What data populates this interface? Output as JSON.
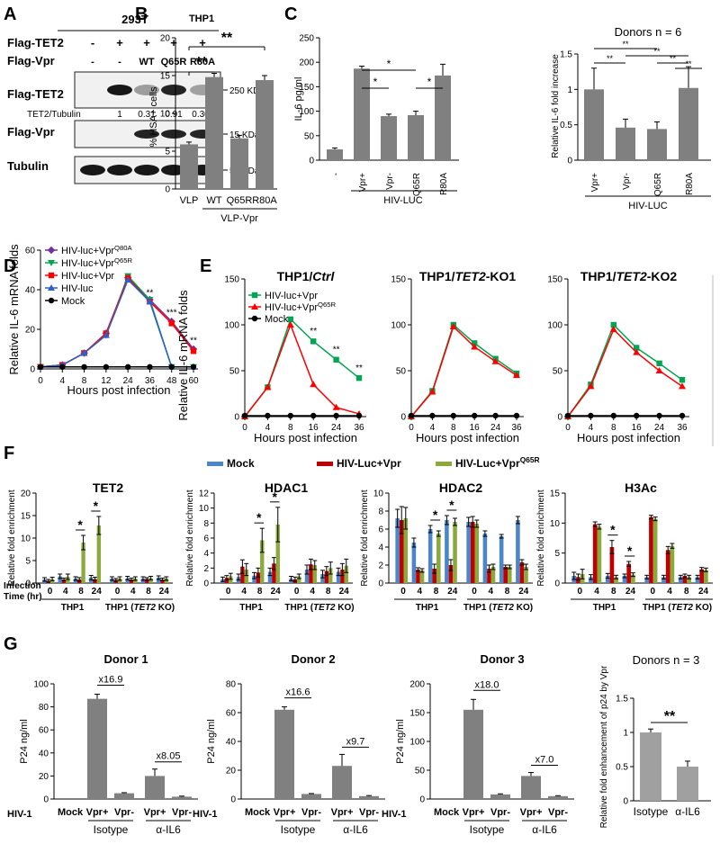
{
  "panel_labels": [
    "A",
    "B",
    "C",
    "D",
    "E",
    "F",
    "G"
  ],
  "A": {
    "cell_line": "293T",
    "row_flag_tet2": "Flag-TET2",
    "row_flag_vpr": "Flag-Vpr",
    "tet2_marks": [
      "-",
      "+",
      "+",
      "+",
      "+"
    ],
    "vpr_marks": [
      "-",
      "-",
      "WT",
      "Q65R",
      "R80A"
    ],
    "blot_labels": [
      "Flag-TET2",
      "Flag-Vpr",
      "Tubulin"
    ],
    "sizes": [
      "250 KDa",
      "15 KDa",
      "55 KDa"
    ],
    "ratio_label": "TET2/Tubulin",
    "ratios": [
      "1",
      "0.31",
      "0.91",
      "0.30"
    ]
  },
  "B": {
    "title": "THP1",
    "ylabel": "% HSA+ cells",
    "group_label": "VLP-Vpr",
    "sig": [
      "**",
      "**"
    ],
    "chart_data": {
      "type": "bar",
      "categories": [
        "VLP",
        "WT",
        "Q65R",
        "R80A"
      ],
      "values": [
        5.9,
        14.8,
        6.7,
        14.4
      ],
      "errors": [
        0.3,
        0.5,
        0.4,
        0.6
      ],
      "ylim": [
        0,
        20
      ],
      "yticks": [
        0,
        5,
        10,
        15,
        20
      ]
    }
  },
  "C": {
    "left": {
      "ylabel": "IL-6 pg/ml",
      "group_label": "HIV-LUC",
      "sig": [
        "*",
        "*",
        "*"
      ],
      "chart_data": {
        "type": "bar",
        "categories": [
          "-",
          "Vpr+",
          "Vpr-",
          "Q65R",
          "R80A"
        ],
        "values": [
          22,
          187,
          90,
          92,
          173
        ],
        "errors": [
          3,
          5,
          4,
          8,
          23
        ],
        "ylim": [
          0,
          250
        ],
        "yticks": [
          0,
          50,
          100,
          150,
          200,
          250
        ]
      }
    },
    "right": {
      "title": "Donors n = 6",
      "ylabel": "Relative IL-6 fold increase",
      "group_label": "HIV-LUC",
      "sig": [
        "**",
        "**",
        "**",
        "**",
        "**"
      ],
      "chart_data": {
        "type": "bar",
        "categories": [
          "Vpr+",
          "Vpr-",
          "Q65R",
          "R80A"
        ],
        "values": [
          1.0,
          0.46,
          0.44,
          1.02
        ],
        "errors": [
          0.3,
          0.12,
          0.1,
          0.3
        ],
        "ylim": [
          0,
          1.5
        ],
        "yticks": [
          0,
          0.5,
          1.0,
          1.5
        ]
      }
    }
  },
  "D": {
    "ylabel": "Relative IL-6 mRNA folds",
    "xlabel": "Hours post infection",
    "chart_data": {
      "type": "line",
      "x": [
        0,
        4,
        8,
        12,
        24,
        36,
        48,
        60
      ],
      "ylim": [
        0,
        60
      ],
      "yticks": [
        0,
        20,
        40,
        60
      ],
      "series": [
        {
          "name": "HIV-luc+VprQ80A",
          "name_main": "HIV-luc+Vpr",
          "name_sup": "Q80A",
          "color": "#7030a0",
          "marker": "diamond",
          "values": [
            1,
            2,
            8,
            18,
            46,
            35,
            24,
            10
          ]
        },
        {
          "name": "HIV-luc+VprQ65R",
          "name_main": "HIV-luc+Vpr",
          "name_sup": "Q65R",
          "color": "#00a651",
          "marker": "triangle-down",
          "values": [
            1,
            2,
            8,
            17,
            47,
            35,
            1,
            1
          ]
        },
        {
          "name": "HIV-luc+Vpr",
          "color": "#ff0000",
          "marker": "square",
          "values": [
            1,
            2,
            8,
            18,
            46,
            34,
            23,
            9
          ]
        },
        {
          "name": "HIV-luc",
          "color": "#2e5fcc",
          "marker": "triangle-up",
          "values": [
            1,
            2,
            8,
            17,
            45,
            34,
            1,
            1
          ]
        },
        {
          "name": "Mock",
          "color": "#000000",
          "marker": "circle",
          "values": [
            1,
            1,
            1,
            1,
            1,
            1,
            1,
            1
          ]
        }
      ],
      "sig": [
        {
          "x": 36,
          "y": 37,
          "label": "**"
        },
        {
          "x": 48,
          "y": 27,
          "label": "***"
        },
        {
          "x": 60,
          "y": 13,
          "label": "**"
        }
      ]
    }
  },
  "E": {
    "ylabel": "Relative IL-6 mRNA folds",
    "xlabel": "Hours post infection",
    "legend": [
      {
        "name": "HIV-luc+Vpr",
        "color": "#00a651",
        "marker": "square"
      },
      {
        "name_main": "HIV-luc+Vpr",
        "name_sup": "Q65R",
        "color": "#ff0000",
        "marker": "triangle-up"
      },
      {
        "name": "Mock",
        "color": "#000000",
        "marker": "circle"
      }
    ],
    "panels": [
      {
        "title_main": "THP1/",
        "title_ital": "Ctrl",
        "title_rest": "",
        "x": [
          0,
          4,
          8,
          16,
          24,
          36
        ],
        "ylim": [
          0,
          150
        ],
        "yticks": [
          0,
          50,
          100,
          150
        ],
        "series": [
          {
            "color": "#00a651",
            "marker": "square",
            "values": [
              0,
              32,
              106,
              82,
              62,
              42
            ]
          },
          {
            "color": "#ff0000",
            "marker": "triangle-up",
            "values": [
              0,
              32,
              100,
              35,
              10,
              3
            ]
          },
          {
            "color": "#000000",
            "marker": "circle",
            "values": [
              1,
              1,
              1,
              1,
              1,
              1
            ]
          }
        ],
        "sig": [
          {
            "x": 16,
            "y": 90,
            "label": "**"
          },
          {
            "x": 24,
            "y": 70,
            "label": "**"
          },
          {
            "x": 36,
            "y": 50,
            "label": "**"
          }
        ]
      },
      {
        "title_main": "THP1/",
        "title_ital": "TET2",
        "title_rest": "-KO1",
        "x": [
          0,
          4,
          8,
          16,
          24,
          36
        ],
        "ylim": [
          0,
          150
        ],
        "yticks": [
          0,
          50,
          100,
          150
        ],
        "series": [
          {
            "color": "#00a651",
            "marker": "square",
            "values": [
              0,
              28,
              100,
              80,
              63,
              47
            ]
          },
          {
            "color": "#ff0000",
            "marker": "triangle-up",
            "values": [
              0,
              27,
              98,
              76,
              60,
              45
            ]
          },
          {
            "color": "#000000",
            "marker": "circle",
            "values": [
              1,
              1,
              1,
              1,
              1,
              1
            ]
          }
        ],
        "sig": []
      },
      {
        "title_main": "THP1/",
        "title_ital": "TET2",
        "title_rest": "-KO2",
        "x": [
          0,
          4,
          8,
          16,
          24,
          36
        ],
        "ylim": [
          0,
          150
        ],
        "yticks": [
          0,
          50,
          100,
          150
        ],
        "series": [
          {
            "color": "#00a651",
            "marker": "square",
            "values": [
              0,
              35,
              100,
              75,
              58,
              40
            ]
          },
          {
            "color": "#ff0000",
            "marker": "triangle-up",
            "values": [
              0,
              33,
              95,
              70,
              50,
              33
            ]
          },
          {
            "color": "#000000",
            "marker": "circle",
            "values": [
              1,
              1,
              1,
              1,
              1,
              1
            ]
          }
        ],
        "sig": []
      }
    ]
  },
  "F": {
    "legend": [
      {
        "name": "Mock",
        "color": "#4a86c8"
      },
      {
        "name": "HIV-Luc+Vpr",
        "color": "#c00000"
      },
      {
        "name_main": "HIV-Luc+Vpr",
        "name_sup": "Q65R",
        "color": "#8aab3c"
      }
    ],
    "ylabel": "Relative fold enrichment",
    "infection_label_1": "Infection",
    "infection_label_2": "Time (hr)",
    "times": [
      "0",
      "4",
      "8",
      "24",
      "0",
      "4",
      "8",
      "24"
    ],
    "groups": [
      {
        "main": "THP1",
        "ital": "",
        "rest": ""
      },
      {
        "main": "THP1 (",
        "ital": "TET2",
        "rest": " KO)"
      }
    ],
    "panels": [
      {
        "title": "TET2",
        "ylim": [
          0,
          20
        ],
        "yticks": [
          0,
          5,
          10,
          15,
          20
        ],
        "sig_groups": [
          2,
          3
        ],
        "values": [
          [
            0.8,
            0.5,
            0.9
          ],
          [
            1.5,
            0.8,
            1.4
          ],
          [
            1.0,
            0.8,
            9.0
          ],
          [
            1.2,
            0.9,
            12.8
          ],
          [
            1.0,
            0.7,
            1.0
          ],
          [
            1.1,
            0.8,
            1.0
          ],
          [
            1.0,
            0.9,
            1.1
          ],
          [
            1.2,
            0.8,
            1.0
          ]
        ],
        "errors": [
          [
            0.4,
            0.3,
            0.4
          ],
          [
            0.5,
            0.3,
            0.6
          ],
          [
            0.4,
            0.4,
            1.6
          ],
          [
            0.5,
            0.4,
            2.0
          ],
          [
            0.4,
            0.3,
            0.4
          ],
          [
            0.4,
            0.3,
            0.4
          ],
          [
            0.4,
            0.3,
            0.4
          ],
          [
            0.4,
            0.3,
            0.4
          ]
        ]
      },
      {
        "title": "HDAC1",
        "ylim": [
          0,
          12
        ],
        "yticks": [
          0,
          2,
          4,
          6,
          8,
          10,
          12
        ],
        "sig_groups": [
          2,
          3
        ],
        "values": [
          [
            0.5,
            0.7,
            0.9
          ],
          [
            0.8,
            2.2,
            1.8
          ],
          [
            1.0,
            1.4,
            5.7
          ],
          [
            1.5,
            2.6,
            7.8
          ],
          [
            0.6,
            0.5,
            0.9
          ],
          [
            1.8,
            2.5,
            2.4
          ],
          [
            1.2,
            1.6,
            2.0
          ],
          [
            1.5,
            1.8,
            2.3
          ]
        ],
        "errors": [
          [
            0.3,
            0.3,
            0.4
          ],
          [
            0.4,
            0.9,
            0.8
          ],
          [
            0.4,
            0.6,
            1.6
          ],
          [
            0.5,
            0.8,
            2.3
          ],
          [
            0.3,
            0.3,
            0.3
          ],
          [
            0.6,
            0.7,
            0.6
          ],
          [
            0.5,
            0.6,
            0.8
          ],
          [
            0.5,
            0.8,
            0.9
          ]
        ]
      },
      {
        "title": "HDAC2",
        "ylim": [
          0,
          10
        ],
        "yticks": [
          0,
          2,
          4,
          6,
          8,
          10
        ],
        "sig_groups": [
          2,
          3
        ],
        "values": [
          [
            7.2,
            7.0,
            7.2
          ],
          [
            4.5,
            1.5,
            1.4
          ],
          [
            6.0,
            1.6,
            5.5
          ],
          [
            7.0,
            2.0,
            6.8
          ],
          [
            6.8,
            6.8,
            6.6
          ],
          [
            5.5,
            1.6,
            1.8
          ],
          [
            5.2,
            1.8,
            1.8
          ],
          [
            7.0,
            2.3,
            1.8
          ]
        ],
        "errors": [
          [
            1.0,
            1.5,
            1.2
          ],
          [
            0.5,
            0.2,
            0.2
          ],
          [
            0.4,
            0.5,
            0.3
          ],
          [
            0.5,
            0.6,
            0.4
          ],
          [
            0.5,
            0.6,
            0.4
          ],
          [
            0.3,
            0.4,
            0.3
          ],
          [
            0.2,
            0.2,
            0.2
          ],
          [
            0.4,
            0.3,
            0.3
          ]
        ]
      },
      {
        "title": "H3Ac",
        "ylim": [
          0,
          15
        ],
        "yticks": [
          0,
          5,
          10,
          15
        ],
        "sig_groups": [
          2,
          3
        ],
        "values": [
          [
            1.2,
            1.0,
            1.5
          ],
          [
            1.0,
            9.8,
            9.4
          ],
          [
            1.2,
            6.0,
            1.0
          ],
          [
            1.2,
            3.2,
            1.4
          ],
          [
            1.0,
            11.0,
            10.7
          ],
          [
            1.0,
            5.5,
            6.2
          ],
          [
            1.0,
            1.2,
            1.0
          ],
          [
            1.0,
            2.3,
            2.2
          ]
        ],
        "errors": [
          [
            0.6,
            0.5,
            0.8
          ],
          [
            0.4,
            0.4,
            0.4
          ],
          [
            0.4,
            1.1,
            0.3
          ],
          [
            0.3,
            0.4,
            0.3
          ],
          [
            0.3,
            0.3,
            0.3
          ],
          [
            0.3,
            0.6,
            0.4
          ],
          [
            0.3,
            0.3,
            0.3
          ],
          [
            0.3,
            0.3,
            0.3
          ]
        ]
      }
    ]
  },
  "G": {
    "hiv_label": "HIV-1",
    "ylabel": "P24 ng/ml",
    "categories": [
      "Mock",
      "Vpr+",
      "Vpr-",
      "Vpr+",
      "Vpr-"
    ],
    "isotype": "Isotype",
    "anti": "α-IL6",
    "donors": [
      {
        "title": "Donor 1",
        "values": [
          0,
          87,
          5,
          20,
          2
        ],
        "errors": [
          0,
          4,
          0.5,
          6,
          0.5
        ],
        "ylim": [
          0,
          100
        ],
        "yticks": [
          0,
          20,
          40,
          60,
          80,
          100
        ],
        "fold1": "x16.9",
        "fold2": "x8.05"
      },
      {
        "title": "Donor 2",
        "values": [
          0,
          62,
          3.5,
          23,
          2
        ],
        "errors": [
          0,
          2,
          0.3,
          8,
          0.4
        ],
        "ylim": [
          0,
          80
        ],
        "yticks": [
          0,
          20,
          40,
          60,
          80
        ],
        "fold1": "x16.6",
        "fold2": "x9.7"
      },
      {
        "title": "Donor 3",
        "values": [
          0,
          155,
          8,
          40,
          5
        ],
        "errors": [
          0,
          18,
          1,
          6,
          0.8
        ],
        "ylim": [
          0,
          200
        ],
        "yticks": [
          0,
          50,
          100,
          150,
          200
        ],
        "fold1": "x18.0",
        "fold2": "x7.0"
      }
    ],
    "summary": {
      "title": "Donors n = 3",
      "ylabel": "Relative fold enhancement of p24 by Vpr",
      "sig": "**",
      "chart_data": {
        "type": "bar",
        "categories": [
          "Isotype",
          "α-IL6"
        ],
        "values": [
          1.0,
          0.5
        ],
        "errors": [
          0.05,
          0.08
        ],
        "ylim": [
          0,
          1.5
        ],
        "yticks": [
          0,
          0.5,
          1.0,
          1.5
        ]
      }
    }
  }
}
